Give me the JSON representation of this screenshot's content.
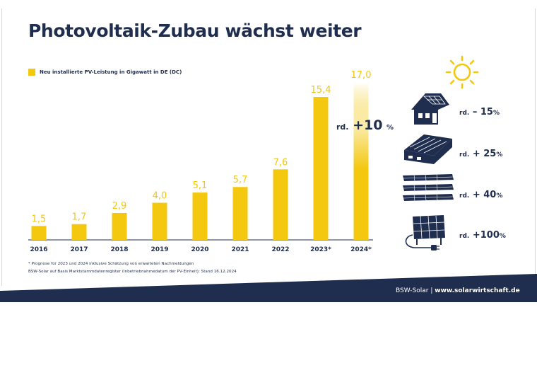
{
  "title": "Photovoltaik-Zubau wächst weiter",
  "legend_label": "Neu installierte PV-Leistung in Gigawatt in DE (DC)",
  "colors": {
    "bar": "#f3c80f",
    "navy": "#1f2d4e",
    "label": "#f3c80f"
  },
  "chart_data": {
    "type": "bar",
    "categories": [
      "2016",
      "2017",
      "2018",
      "2019",
      "2020",
      "2021",
      "2022",
      "2023*",
      "2024*"
    ],
    "values": [
      1.5,
      1.7,
      2.9,
      4.0,
      5.1,
      5.7,
      7.6,
      15.4,
      17.0
    ],
    "value_labels": [
      "1,5",
      "1,7",
      "2,9",
      "4,0",
      "5,1",
      "5,7",
      "7,6",
      "15,4",
      "17,0"
    ],
    "ylim": [
      0,
      17.0
    ],
    "legend": [
      "Neu installierte PV-Leistung in Gigawatt in DE (DC)"
    ],
    "grid": false
  },
  "growth": {
    "prefix": "rd.",
    "value": "+10",
    "unit": "%"
  },
  "segments": [
    {
      "icon": "house-rooftop-icon",
      "prefix": "rd.",
      "value": "– 15",
      "unit": "%"
    },
    {
      "icon": "commercial-roof-icon",
      "prefix": "rd.",
      "value": "+ 25",
      "unit": "%"
    },
    {
      "icon": "solar-park-icon",
      "prefix": "rd.",
      "value": "+ 40",
      "unit": "%"
    },
    {
      "icon": "balcony-plug-in-panel-icon",
      "prefix": "rd.",
      "value": "+100",
      "unit": "%"
    }
  ],
  "footnotes": [
    "* Prognose für 2023 und 2024 inklusive Schätzung von erwarteten Nachmeldungen",
    "BSW-Solar auf Basis Marktstammdatenregister (Inbetriebnahmedatum der PV-Einheit); Stand 16.12.2024"
  ],
  "footer": {
    "org": "BSW-Solar",
    "separator": "|",
    "url": "www.solarwirtschaft.de"
  }
}
